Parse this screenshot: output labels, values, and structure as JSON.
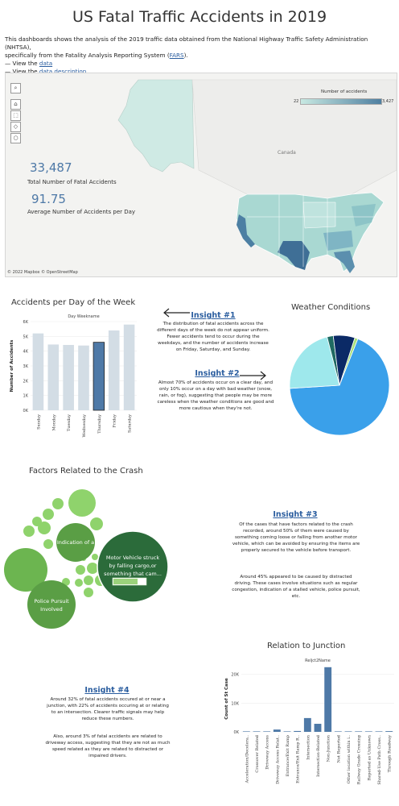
{
  "title": "US Fatal Traffic Accidents in 2019",
  "intro": {
    "line1_a": "This dashboards shows the analysis of the 2019 traffic data obtained from the National Highway Traffic Safety Administration (NHTSA),",
    "line2_a": "specifically from the Fatality Analysis Reporting System (",
    "fars_link": "FARS",
    "line2_b": ").",
    "view_prefix": "— View the ",
    "data_link": "data",
    "desc_link": "data description"
  },
  "map": {
    "legend_title": "Number of accidents",
    "legend_min": "22",
    "legend_max": "3,427",
    "country_label": "Canada",
    "copyright": "© 2022 Mapbox © OpenStreetMap",
    "tools": [
      "search-icon",
      "home-icon",
      "select-icon",
      "pan-icon",
      "lasso-icon"
    ]
  },
  "kpis": {
    "total_value": "33,487",
    "total_label": "Total Number of Fatal Accidents",
    "avg_value": "91.75",
    "avg_label": "Average Number of Accidents per Day"
  },
  "colors": {
    "bar": "#d3dde5",
    "bar_highlight": "#4e79a7",
    "insight_link": "#2a5d9f",
    "pie": [
      "#3aa0ea",
      "#9ee8ec",
      "#1f6a62",
      "#0b2a66",
      "#a8e07a"
    ],
    "bubbles_light": "#8fd36c",
    "bubbles_mid": "#5a9e45",
    "bubbles_dark": "#2b6b3a",
    "junction_bar": "#4e79a7"
  },
  "days_chart": {
    "title": "Accidents per Day of the Week",
    "header": "Day Weekname",
    "ylabel": "Number of Accidents"
  },
  "insight1": {
    "heading": "Insight #1",
    "text": "The distribution of fatal accidents across the different days of the week do not appear uniform. Fewer accidents tend to occur during the weekdays, and the number of accidents increase on Friday, Saturday, and Sunday."
  },
  "insight2": {
    "heading": "Insight #2",
    "text": "Almost 70% of accidents occur on a clear day, and only 10% occur on a day with bad weather (snow, rain, or fog), suggesting that people may be more careless when the weather conditions are good and more cautious when they're not."
  },
  "weather": {
    "title": "Weather Conditions"
  },
  "factors": {
    "title": "Factors Related to the Crash",
    "label_indication": "Indication of a",
    "label_police_1": "Police Pursuit",
    "label_police_2": "Involved",
    "label_motor_1": "Motor Vehicle struck",
    "label_motor_2": "by falling cargo,or",
    "label_motor_3": "something that cam..."
  },
  "insight3": {
    "heading": "Insight #3",
    "text1": "Of the cases that have factors related to the crash recorded, around 50% of them were caused by something coming loose or falling from another motor vehicle, which can be avoided by ensuring the items are properly secured to the vehicle before transport.",
    "text2": "Around 45% appeared to be caused by distracted driving. These cases involve situations such as regular congestion, indication of a stalled vehicle, police pursuit, etc."
  },
  "junction": {
    "title": "Relation to Junction",
    "header": "Reljct2Name",
    "ylabel": "Count of St Case"
  },
  "insight4": {
    "heading": "Insight #4",
    "text1": "Around 32% of fatal accidents occured at or near a junction, with 22% of accidents occuring at or relating to an intersection. Clearer traffic signals may help reduce these numbers.",
    "text2": "Also, around 3% of fatal accidents are related to driveway access, suggesting that they are not as much speed related as they are related to distracted or impaired drivers."
  },
  "chart_data": [
    {
      "type": "bar",
      "title": "Accidents per Day of the Week",
      "xlabel": "Day Weekname",
      "ylabel": "Number of Accidents",
      "categories": [
        "Sunday",
        "Monday",
        "Tuesday",
        "Wednesday",
        "Thursday",
        "Friday",
        "Saturday"
      ],
      "values": [
        5200,
        4450,
        4420,
        4380,
        4600,
        5400,
        5800
      ],
      "highlight": "Thursday",
      "ylim": [
        0,
        6000
      ],
      "yticks": [
        "0K",
        "1K",
        "2K",
        "3K",
        "4K",
        "5K",
        "6K"
      ],
      "grid": true
    },
    {
      "type": "pie",
      "title": "Weather Conditions",
      "values": [
        68,
        22,
        2,
        7,
        1
      ]
    },
    {
      "type": "bar",
      "title": "Relation to Junction",
      "xlabel": "Reljct2Name",
      "ylabel": "Count of St Case",
      "categories": [
        "Acceleration/Decelera..",
        "Crossover Related",
        "Driveway Access",
        "Driveway Access Relat..",
        "Entrance/Exit Ramp",
        "Entrance/Exit Ramp R..",
        "Intersection",
        "Intersection-Related",
        "Non-Junction",
        "Not Reported",
        "Other location within i..",
        "Railway Grade Crossing",
        "Reported as Unknown",
        "Shared-Use Path Cross..",
        "Through Roadway"
      ],
      "values": [
        100,
        80,
        150,
        800,
        100,
        300,
        4800,
        2800,
        22500,
        150,
        100,
        60,
        150,
        50,
        250
      ],
      "ylim": [
        0,
        23000
      ],
      "yticks": [
        "0K",
        "10K",
        "20K"
      ],
      "grid": true
    }
  ]
}
